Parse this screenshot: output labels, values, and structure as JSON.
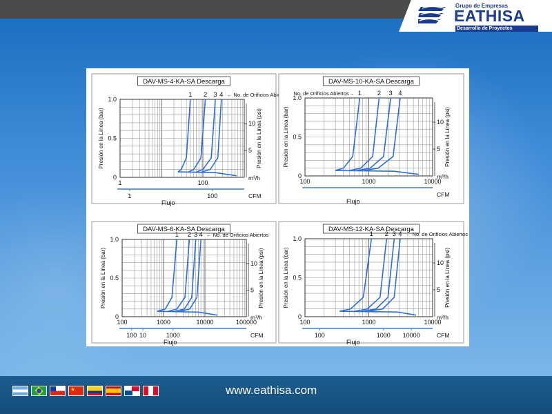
{
  "brand": {
    "small": "Grupo de Empresas",
    "name": "EATHISA",
    "tagline": "Desarrollo de Proyectos",
    "color": "#1a3c8c"
  },
  "footer": {
    "url": "www.eathisa.com"
  },
  "flags": [
    "argentina-flag",
    "brazil-flag",
    "chile-flag",
    "china-flag",
    "colombia-flag",
    "spain-flag",
    "panama-flag",
    "peru-flag"
  ],
  "curve_color": "#2a6fd6",
  "chart_data": [
    {
      "type": "line",
      "title": "DAV-MS-4-KA-SA Descarga",
      "xlabel": "Flujo",
      "ylabel": "Presión en la Línea (bar)",
      "ylabel_right": "Presión en la Línea (psi)",
      "x_unit": "m³/h",
      "x2_unit": "CFM",
      "xlim": [
        1,
        1000
      ],
      "xticks": [
        "1",
        "100"
      ],
      "x2ticks": [
        "1",
        "100"
      ],
      "ylim": [
        0,
        1.0
      ],
      "yticks": [
        "0",
        "0.5",
        "1.0"
      ],
      "yticks_right": [
        "5",
        "10"
      ],
      "legend_text": "← No. de Orificios Abiertos",
      "legend_side": "right",
      "series": [
        {
          "name": "1",
          "x": [
            25,
            30,
            40,
            50
          ],
          "y": [
            0.07,
            0.1,
            0.25,
            1.0
          ]
        },
        {
          "name": "2",
          "x": [
            45,
            60,
            90,
            115
          ],
          "y": [
            0.07,
            0.1,
            0.25,
            1.0
          ]
        },
        {
          "name": "3",
          "x": [
            70,
            100,
            160,
            200
          ],
          "y": [
            0.07,
            0.1,
            0.25,
            1.0
          ]
        },
        {
          "name": "4",
          "x": [
            95,
            150,
            230,
            280
          ],
          "y": [
            0.07,
            0.1,
            0.25,
            1.0
          ]
        }
      ],
      "tail": {
        "x": [
          25,
          200,
          650
        ],
        "y": [
          0.07,
          0.06,
          0.02
        ]
      }
    },
    {
      "type": "line",
      "title": "DAV-MS-10-KA-SA Descarga",
      "xlabel": "Flujo",
      "ylabel": "Presión en la Línea (bar)",
      "ylabel_right": "Presión en la Línea (psi)",
      "x_unit": "m³/h",
      "x2_unit": "CFM",
      "xlim": [
        100,
        10000
      ],
      "xticks": [
        "100",
        "1000",
        "10000"
      ],
      "x2ticks": [],
      "ylim": [
        0,
        1.0
      ],
      "yticks": [
        "0",
        "0.5",
        "1.0"
      ],
      "yticks_right": [
        "5",
        "10"
      ],
      "legend_text": "No. de Orificios Abiertos→",
      "legend_side": "left",
      "series": [
        {
          "name": "1",
          "x": [
            300,
            400,
            560,
            720
          ],
          "y": [
            0.07,
            0.1,
            0.25,
            1.0
          ]
        },
        {
          "name": "2",
          "x": [
            500,
            750,
            1150,
            1450
          ],
          "y": [
            0.07,
            0.1,
            0.25,
            1.0
          ]
        },
        {
          "name": "3",
          "x": [
            650,
            1050,
            1700,
            2200
          ],
          "y": [
            0.07,
            0.1,
            0.25,
            1.0
          ]
        },
        {
          "name": "4",
          "x": [
            850,
            1400,
            2400,
            3100
          ],
          "y": [
            0.07,
            0.1,
            0.25,
            1.0
          ]
        }
      ],
      "tail": {
        "x": [
          300,
          2500,
          6000
        ],
        "y": [
          0.07,
          0.06,
          0.02
        ]
      }
    },
    {
      "type": "line",
      "title": "DAV-MS-6-KA-SA Descarga",
      "xlabel": "Flujo",
      "ylabel": "Presión en la Línea (bar)",
      "ylabel_right": "Presión en la Línea (psi)",
      "x_unit": "m³/h",
      "x2_unit": "CFM",
      "xlim": [
        100,
        100000
      ],
      "xticks": [
        "100",
        "1000",
        "10000",
        "100000"
      ],
      "x2ticks": [
        "10",
        "100",
        "1000"
      ],
      "ylim": [
        0,
        1.0
      ],
      "yticks": [
        "0",
        "0.5",
        "1.0"
      ],
      "yticks_right": [
        "5",
        "10"
      ],
      "legend_text": "← No. de Orificios Abiertos",
      "legend_side": "right",
      "series": [
        {
          "name": "1",
          "x": [
            700,
            1100,
            1600,
            2100
          ],
          "y": [
            0.07,
            0.1,
            0.25,
            1.0
          ]
        },
        {
          "name": "2",
          "x": [
            1300,
            2100,
            3300,
            4200
          ],
          "y": [
            0.07,
            0.1,
            0.25,
            1.0
          ]
        },
        {
          "name": "3",
          "x": [
            1900,
            3200,
            4800,
            6000
          ],
          "y": [
            0.07,
            0.1,
            0.25,
            1.0
          ]
        },
        {
          "name": "4",
          "x": [
            2500,
            4300,
            6400,
            8000
          ],
          "y": [
            0.07,
            0.1,
            0.25,
            1.0
          ]
        }
      ],
      "tail": {
        "x": [
          700,
          7000,
          20000
        ],
        "y": [
          0.07,
          0.06,
          0.02
        ]
      }
    },
    {
      "type": "line",
      "title": "DAV-MS-12-KA-SA Descarga",
      "xlabel": "Flujo",
      "ylabel": "Presión en la Línea (bar)",
      "ylabel_right": "Presión en la Línea (psi)",
      "x_unit": "m³/h",
      "x2_unit": "CFM",
      "xlim": [
        100,
        10000
      ],
      "xticks": [
        "100",
        "1000",
        "10000"
      ],
      "x2ticks": [
        "100",
        "1000",
        "10000"
      ],
      "ylim": [
        0,
        1.0
      ],
      "yticks": [
        "0",
        "0.5",
        "1.0"
      ],
      "yticks_right": [
        "5",
        "10"
      ],
      "legend_text": "← No. de Orificios Abiertos",
      "legend_side": "right",
      "series": [
        {
          "name": "1",
          "x": [
            350,
            520,
            820,
            1100
          ],
          "y": [
            0.07,
            0.1,
            0.25,
            1.0
          ]
        },
        {
          "name": "2",
          "x": [
            600,
            950,
            1500,
            1900
          ],
          "y": [
            0.07,
            0.1,
            0.25,
            1.0
          ]
        },
        {
          "name": "3",
          "x": [
            800,
            1300,
            2000,
            2500
          ],
          "y": [
            0.07,
            0.1,
            0.25,
            1.0
          ]
        },
        {
          "name": "4",
          "x": [
            1000,
            1650,
            2500,
            3100
          ],
          "y": [
            0.07,
            0.1,
            0.25,
            1.0
          ]
        }
      ],
      "tail": {
        "x": [
          350,
          2800,
          5500
        ],
        "y": [
          0.07,
          0.06,
          0.02
        ]
      }
    }
  ]
}
